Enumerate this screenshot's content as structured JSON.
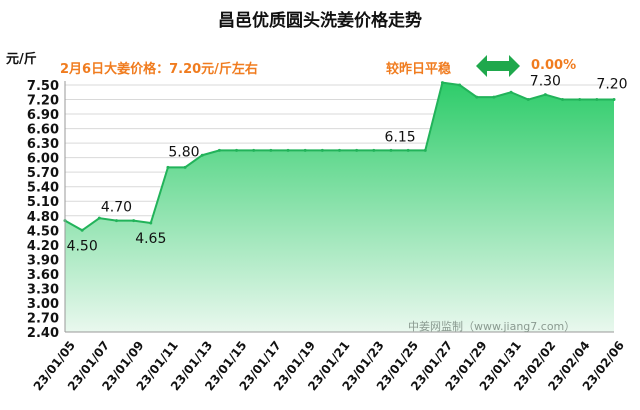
{
  "header": {
    "title": "昌邑优质圆头洗姜价格走势",
    "unit": "元/斤",
    "price_note": "2月6日大姜价格：7.20元/斤左右",
    "trend_label": "较昨日平稳",
    "change_value": "0.00%",
    "trend_icon": "double-arrow-icon",
    "watermark": "中姜网监制（www.jiang7.com）"
  },
  "colors": {
    "accent": "#f07c1f",
    "line": "#22b35a",
    "fill_top": "#2ecc6a",
    "fill_bottom": "#e9f8ee",
    "arrow": "#1fa84c"
  },
  "chart_data": {
    "type": "area",
    "title": "昌邑优质圆头洗姜价格走势",
    "ylabel": "元/斤",
    "xlabel": "",
    "ylim": [
      2.4,
      7.5
    ],
    "y_ticks": [
      "2.40",
      "2.70",
      "3.00",
      "3.30",
      "3.60",
      "3.90",
      "4.20",
      "4.50",
      "4.80",
      "5.10",
      "5.40",
      "5.70",
      "6.00",
      "6.30",
      "6.60",
      "6.90",
      "7.20",
      "7.50"
    ],
    "x_tick_labels": [
      "23/01/05",
      "23/01/07",
      "23/01/09",
      "23/01/11",
      "23/01/13",
      "23/01/15",
      "23/01/17",
      "23/01/19",
      "23/01/21",
      "23/01/23",
      "23/01/25",
      "23/01/27",
      "23/01/29",
      "23/01/31",
      "23/02/02",
      "23/02/04",
      "23/02/06"
    ],
    "grid": true,
    "series": [
      {
        "x": [
          "23/01/05",
          "23/01/06",
          "23/01/07",
          "23/01/08",
          "23/01/09",
          "23/01/10",
          "23/01/11",
          "23/01/12",
          "23/01/13",
          "23/01/14",
          "23/01/15",
          "23/01/16",
          "23/01/17",
          "23/01/18",
          "23/01/19",
          "23/01/20",
          "23/01/21",
          "23/01/22",
          "23/01/23",
          "23/01/24",
          "23/01/25",
          "23/01/26",
          "23/01/27",
          "23/01/28",
          "23/01/29",
          "23/01/30",
          "23/01/31",
          "23/02/01",
          "23/02/02",
          "23/02/03",
          "23/02/04",
          "23/02/05",
          "23/02/06"
        ],
        "values": [
          4.7,
          4.5,
          4.75,
          4.7,
          4.7,
          4.65,
          5.8,
          5.8,
          6.05,
          6.15,
          6.15,
          6.15,
          6.15,
          6.15,
          6.15,
          6.15,
          6.15,
          6.15,
          6.15,
          6.15,
          6.15,
          6.15,
          7.55,
          7.5,
          7.25,
          7.25,
          7.35,
          7.2,
          7.3,
          7.2,
          7.2,
          7.2,
          7.2
        ]
      }
    ],
    "data_labels": [
      {
        "x": "23/01/06",
        "text": "4.50"
      },
      {
        "x": "23/01/08",
        "text": "4.70"
      },
      {
        "x": "23/01/10",
        "text": "4.65"
      },
      {
        "x": "23/01/11",
        "text": "5.80"
      },
      {
        "x": "23/01/25",
        "text": "6.15"
      },
      {
        "x": "23/02/02",
        "text": "7.30"
      },
      {
        "x": "23/02/06",
        "text": "7.20"
      }
    ]
  }
}
